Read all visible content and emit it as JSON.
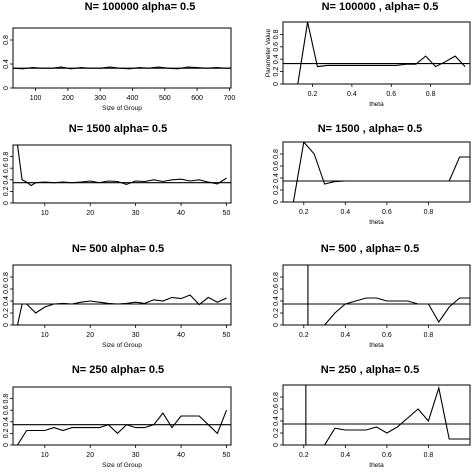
{
  "chart_data": [
    {
      "type": "line",
      "title": "N= 100000 alpha= 0.5",
      "xlabel": "Size of Group",
      "ylabel": "",
      "xlim": [
        30,
        705
      ],
      "ylim": [
        0,
        1.0
      ],
      "xticks": [
        100,
        200,
        300,
        400,
        500,
        600,
        700
      ],
      "yticks": [
        0,
        0.4,
        0.8
      ],
      "hline": 0.33,
      "vline": null,
      "series": [
        {
          "x": [
            30,
            60,
            90,
            120,
            150,
            180,
            210,
            240,
            270,
            300,
            330,
            360,
            390,
            420,
            450,
            480,
            510,
            540,
            570,
            600,
            630,
            660,
            690,
            705
          ],
          "y": [
            0.33,
            0.32,
            0.34,
            0.33,
            0.33,
            0.35,
            0.32,
            0.34,
            0.33,
            0.33,
            0.35,
            0.33,
            0.32,
            0.34,
            0.33,
            0.35,
            0.33,
            0.32,
            0.35,
            0.34,
            0.33,
            0.34,
            0.33,
            0.33
          ]
        }
      ]
    },
    {
      "type": "line",
      "title": "N= 100000 , alpha= 0.5",
      "xlabel": "theta",
      "ylabel": "Parameter Value",
      "xlim": [
        0.05,
        1.0
      ],
      "ylim": [
        0,
        1.0
      ],
      "xticks": [
        0.2,
        0.4,
        0.6,
        0.8
      ],
      "yticks": [
        0,
        0.2,
        0.4,
        0.6,
        0.8
      ],
      "hline": 0.33,
      "vline": null,
      "series": [
        {
          "x": [
            0.125,
            0.175,
            0.225,
            0.275,
            0.325,
            0.375,
            0.425,
            0.475,
            0.525,
            0.575,
            0.625,
            0.675,
            0.725,
            0.775,
            0.825,
            0.875,
            0.925,
            0.975
          ],
          "y": [
            0.0,
            1.0,
            0.28,
            0.3,
            0.3,
            0.3,
            0.3,
            0.3,
            0.3,
            0.3,
            0.3,
            0.32,
            0.32,
            0.45,
            0.28,
            0.36,
            0.45,
            0.28
          ]
        }
      ]
    },
    {
      "type": "line",
      "title": "N= 1500 alpha= 0.5",
      "xlabel": "",
      "ylabel": "",
      "xlim": [
        3,
        51
      ],
      "ylim": [
        0,
        1.0
      ],
      "xticks": [
        10,
        20,
        30,
        40,
        50
      ],
      "yticks": [
        0,
        0.2,
        0.4,
        0.6,
        0.8
      ],
      "hline": 0.35,
      "vline": null,
      "series": [
        {
          "x": [
            4,
            5,
            6,
            7,
            8,
            10,
            12,
            14,
            16,
            18,
            20,
            22,
            24,
            26,
            28,
            30,
            32,
            34,
            36,
            38,
            40,
            42,
            44,
            46,
            48,
            50
          ],
          "y": [
            1.0,
            0.4,
            0.36,
            0.3,
            0.35,
            0.36,
            0.35,
            0.36,
            0.35,
            0.36,
            0.38,
            0.35,
            0.38,
            0.37,
            0.32,
            0.38,
            0.37,
            0.4,
            0.37,
            0.4,
            0.41,
            0.38,
            0.4,
            0.36,
            0.33,
            0.43
          ]
        }
      ]
    },
    {
      "type": "line",
      "title": "N= 1500 , alpha= 0.5",
      "xlabel": "theta",
      "ylabel": "",
      "xlim": [
        0.1,
        1.0
      ],
      "ylim": [
        0,
        1.0
      ],
      "xticks": [
        0.2,
        0.4,
        0.6,
        0.8
      ],
      "yticks": [
        0,
        0.2,
        0.4,
        0.6,
        0.8
      ],
      "hline": 0.35,
      "vline": null,
      "series": [
        {
          "x": [
            0.15,
            0.2,
            0.25,
            0.3,
            0.35,
            0.4,
            0.45,
            0.5,
            0.55,
            0.6,
            0.65,
            0.7,
            0.75,
            0.8,
            0.85,
            0.9,
            0.95,
            1.0
          ],
          "y": [
            0.0,
            1.0,
            0.8,
            0.3,
            0.34,
            0.35,
            0.35,
            0.35,
            0.35,
            0.35,
            0.35,
            0.35,
            0.35,
            0.35,
            0.35,
            0.35,
            0.75,
            0.75
          ]
        }
      ]
    },
    {
      "type": "line",
      "title": "N= 500 alpha= 0.5",
      "xlabel": "Size of Group",
      "ylabel": "",
      "xlim": [
        3,
        51
      ],
      "ylim": [
        0,
        1.0
      ],
      "xticks": [
        10,
        20,
        30,
        40,
        50
      ],
      "yticks": [
        0,
        0.2,
        0.4,
        0.6,
        0.8
      ],
      "hline": 0.35,
      "vline": null,
      "series": [
        {
          "x": [
            4,
            5,
            6,
            8,
            10,
            12,
            14,
            16,
            18,
            20,
            22,
            24,
            26,
            28,
            30,
            32,
            34,
            36,
            38,
            40,
            42,
            44,
            46,
            48,
            50
          ],
          "y": [
            0.0,
            0.35,
            0.35,
            0.2,
            0.3,
            0.35,
            0.36,
            0.35,
            0.38,
            0.4,
            0.38,
            0.36,
            0.35,
            0.36,
            0.38,
            0.36,
            0.42,
            0.4,
            0.46,
            0.44,
            0.5,
            0.34,
            0.46,
            0.38,
            0.45
          ]
        }
      ]
    },
    {
      "type": "line",
      "title": "N= 500 , alpha= 0.5",
      "xlabel": "theta",
      "ylabel": "",
      "xlim": [
        0.1,
        1.0
      ],
      "ylim": [
        0,
        1.0
      ],
      "xticks": [
        0.2,
        0.4,
        0.6,
        0.8
      ],
      "yticks": [
        0,
        0.2,
        0.4,
        0.6,
        0.8
      ],
      "hline": 0.35,
      "vline": 0.22,
      "series": [
        {
          "x": [
            0.3,
            0.35,
            0.4,
            0.45,
            0.5,
            0.55,
            0.6,
            0.65,
            0.7,
            0.75,
            0.8,
            0.85,
            0.9,
            0.95,
            1.0
          ],
          "y": [
            0.0,
            0.2,
            0.35,
            0.4,
            0.45,
            0.45,
            0.4,
            0.4,
            0.4,
            0.35,
            0.35,
            0.05,
            0.3,
            0.45,
            0.45
          ]
        }
      ]
    },
    {
      "type": "line",
      "title": "N= 250 alpha= 0.5",
      "xlabel": "Size of Group",
      "ylabel": "",
      "xlim": [
        3,
        51
      ],
      "ylim": [
        0,
        1.0
      ],
      "xticks": [
        10,
        20,
        30,
        40,
        50
      ],
      "yticks": [
        0,
        0.2,
        0.4,
        0.6,
        0.8
      ],
      "hline": 0.35,
      "vline": null,
      "series": [
        {
          "x": [
            4,
            6,
            8,
            10,
            12,
            14,
            16,
            18,
            20,
            22,
            24,
            26,
            28,
            30,
            32,
            34,
            36,
            38,
            40,
            42,
            44,
            46,
            48,
            50
          ],
          "y": [
            0.0,
            0.25,
            0.25,
            0.25,
            0.3,
            0.25,
            0.3,
            0.3,
            0.3,
            0.3,
            0.35,
            0.2,
            0.35,
            0.3,
            0.3,
            0.35,
            0.55,
            0.3,
            0.5,
            0.5,
            0.5,
            0.35,
            0.2,
            0.6
          ]
        }
      ]
    },
    {
      "type": "line",
      "title": "N= 250 , alpha= 0.5",
      "xlabel": "theta",
      "ylabel": "",
      "xlim": [
        0.1,
        1.0
      ],
      "ylim": [
        0,
        1.0
      ],
      "xticks": [
        0.2,
        0.4,
        0.6,
        0.8
      ],
      "yticks": [
        0,
        0.2,
        0.4,
        0.6,
        0.8
      ],
      "hline": 0.35,
      "vline": 0.21,
      "series": [
        {
          "x": [
            0.3,
            0.35,
            0.4,
            0.45,
            0.5,
            0.55,
            0.6,
            0.65,
            0.7,
            0.75,
            0.8,
            0.85,
            0.9,
            0.95,
            1.0
          ],
          "y": [
            0.0,
            0.28,
            0.25,
            0.25,
            0.25,
            0.3,
            0.2,
            0.3,
            0.45,
            0.6,
            0.4,
            0.95,
            0.1,
            0.1,
            0.1
          ]
        }
      ]
    }
  ]
}
